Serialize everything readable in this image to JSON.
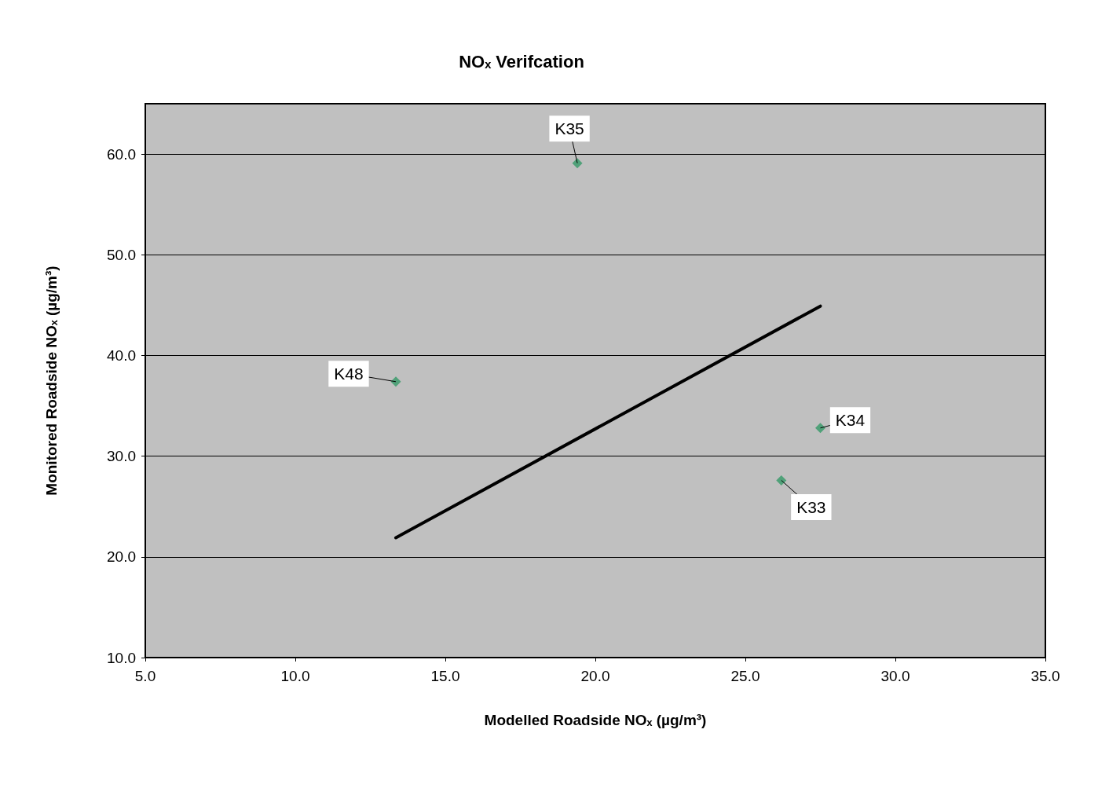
{
  "chart_data": {
    "type": "scatter",
    "title": "NOₓ Verifcation",
    "xlabel": "Modelled Roadside NOₓ (µg/m³)",
    "ylabel": "Monitored Roadside NOₓ (µg/m³)",
    "series": [
      {
        "color": "#339966",
        "marker": "diamond",
        "x": [
          19.4,
          13.35,
          27.5,
          26.2
        ],
        "values": [
          59.1,
          37.4,
          32.8,
          27.6
        ]
      },
      {
        "type": "line",
        "color": "#000000",
        "marker": "none",
        "line_style": "solid",
        "x": [
          13.35,
          27.5
        ],
        "values": [
          21.9,
          44.9
        ]
      }
    ],
    "annotations": [
      {
        "text": "K35",
        "x": 19.4,
        "y": 59.1
      },
      {
        "text": "K48",
        "x": 13.35,
        "y": 37.4
      },
      {
        "text": "K34",
        "x": 27.5,
        "y": 32.8
      },
      {
        "text": "K33",
        "x": 26.2,
        "y": 27.6
      }
    ],
    "xlim": [
      5,
      35
    ],
    "xticks": [
      {
        "value": 5,
        "label": "5.0"
      },
      {
        "value": 10,
        "label": "10.0"
      },
      {
        "value": 15,
        "label": "15.0"
      },
      {
        "value": 20,
        "label": "20.0"
      },
      {
        "value": 25,
        "label": "25.0"
      },
      {
        "value": 30,
        "label": "30.0"
      },
      {
        "value": 35,
        "label": "35.0"
      }
    ],
    "ylim": [
      10,
      65
    ],
    "yticks": [
      {
        "value": 10,
        "label": "10.0"
      },
      {
        "value": 20,
        "label": "20.0"
      },
      {
        "value": 30,
        "label": "30.0"
      },
      {
        "value": 40,
        "label": "40.0"
      },
      {
        "value": 50,
        "label": "50.0"
      },
      {
        "value": 60,
        "label": "60.0"
      }
    ],
    "grid": "y"
  }
}
